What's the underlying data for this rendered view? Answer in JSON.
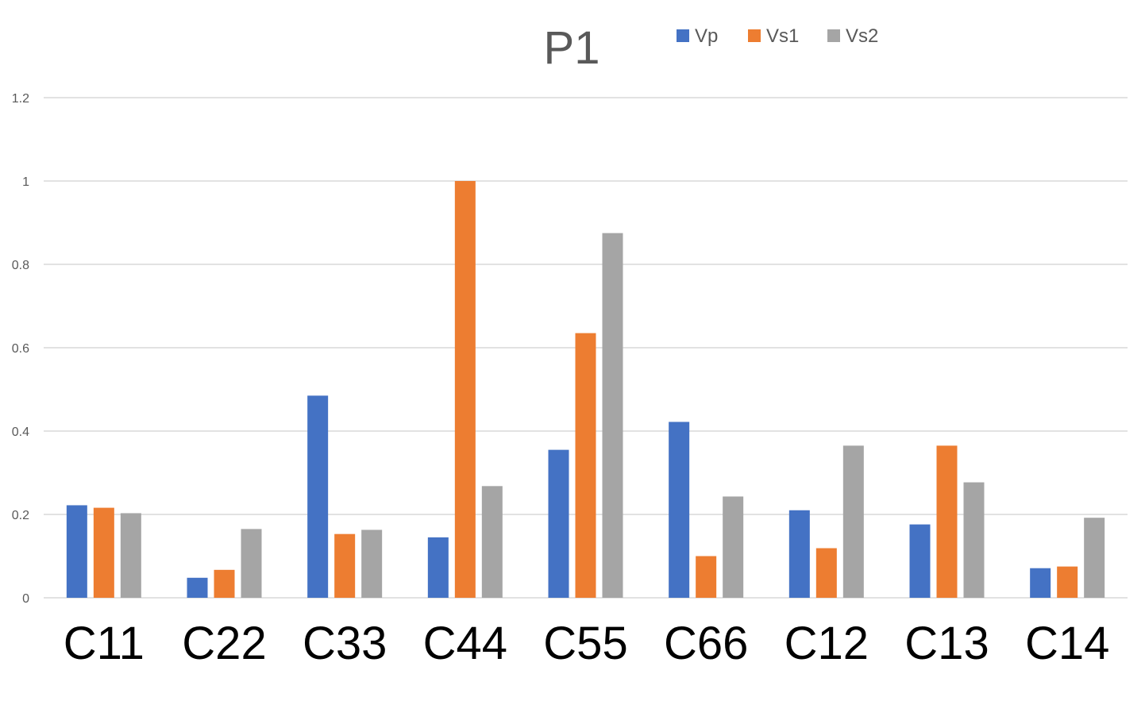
{
  "chart_data": {
    "type": "bar",
    "title": "P1",
    "xlabel": "",
    "ylabel": "",
    "categories": [
      "C11",
      "C22",
      "C33",
      "C44",
      "C55",
      "C66",
      "C12",
      "C13",
      "C14"
    ],
    "series": [
      {
        "name": "Vp",
        "color": "#4472c4",
        "values": [
          0.222,
          0.048,
          0.485,
          0.145,
          0.355,
          0.422,
          0.21,
          0.176,
          0.071
        ]
      },
      {
        "name": "Vs1",
        "color": "#ed7d31",
        "values": [
          0.216,
          0.067,
          0.153,
          1.0,
          0.635,
          0.1,
          0.119,
          0.365,
          0.075
        ]
      },
      {
        "name": "Vs2",
        "color": "#a5a5a5",
        "values": [
          0.203,
          0.165,
          0.163,
          0.268,
          0.875,
          0.243,
          0.365,
          0.277,
          0.192
        ]
      }
    ],
    "ylim": [
      0,
      1.2
    ],
    "yticks": [
      "0",
      "0.2",
      "0.4",
      "0.6",
      "0.8",
      "1",
      "1.2"
    ],
    "grid": true,
    "legend_position": "top"
  }
}
